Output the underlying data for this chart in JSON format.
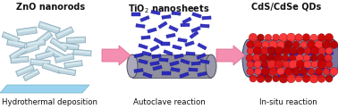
{
  "panel1_title": "ZnO nanorods",
  "panel2_title": "TiO$_2$ nanosheets",
  "panel3_title": "CdS/CdSe QDs",
  "panel1_label": "Hydrothermal deposition",
  "panel2_label": "Autoclave reaction",
  "panel3_label": "In-situ reaction",
  "arrow_color": "#F48FB1",
  "arrow_edge": "#E07090",
  "nanorod_face": "#BDD5DF",
  "nanorod_edge": "#8AAABB",
  "substrate_face": "#88CCEE",
  "substrate_edge": "#66AABB",
  "tio2_color": "#2222BB",
  "tio2_edge": "#111199",
  "cable_face": "#808090",
  "cable_edge": "#505060",
  "cable3_face": "#6A6A88",
  "cable3_edge": "#404060",
  "qd_colors": [
    "#DD1111",
    "#CC0000",
    "#EE2222",
    "#BB0000",
    "#FF3333",
    "#AA0000"
  ],
  "qd_edge": "#880000",
  "background": "#FFFFFF",
  "title_fontsize": 7.0,
  "label_fontsize": 6.2,
  "fig_w": 3.78,
  "fig_h": 1.22,
  "dpi": 100
}
